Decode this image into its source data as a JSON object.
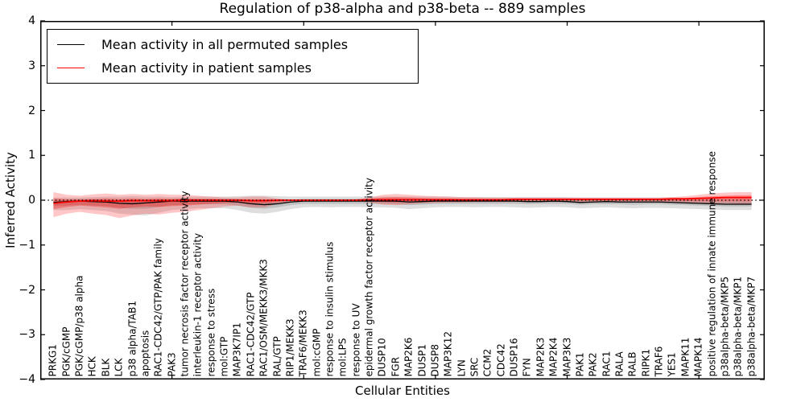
{
  "figure": {
    "title": "Regulation of p38-alpha and p38-beta -- 889 samples",
    "background": "#ffffff"
  },
  "legend": {
    "entries": [
      {
        "label": "Mean activity in all permuted samples",
        "color": "#000000"
      },
      {
        "label": "Mean activity in patient samples",
        "color": "#ff0000"
      }
    ]
  },
  "axes": {
    "ylabel": "Inferred Activity",
    "xlabel": "Cellular Entities",
    "y_ticks": [
      "4",
      "3",
      "2",
      "1",
      "0",
      "−1",
      "−2",
      "−3",
      "−4"
    ],
    "y_tick_values": [
      4,
      3,
      2,
      1,
      0,
      -1,
      -2,
      -3,
      -4
    ],
    "x_tick_values": [
      10,
      20,
      30,
      40,
      50
    ],
    "ylim": [
      -4,
      4
    ],
    "xlim": [
      0,
      55
    ]
  },
  "chart_data": {
    "type": "line",
    "title": "Regulation of p38-alpha and p38-beta -- 889 samples",
    "xlabel": "Cellular Entities",
    "ylabel": "Inferred Activity",
    "ylim": [
      -4,
      4
    ],
    "grid": false,
    "legend_position": "upper left",
    "zero_line": {
      "value": 0,
      "style": "dotted",
      "color": "#000000"
    },
    "categories": [
      "PRKG1",
      "PGK/cGMP",
      "PGK/cGMP/p38 alpha",
      "HCK",
      "BLK",
      "LCK",
      "p38 alpha/TAB1",
      "apoptosis",
      "RAC1-CDC42/GTP/PAK family",
      "PAK3",
      "tumor necrosis factor receptor activity",
      "interleukin-1 receptor activity",
      "response to stress",
      "mol:GTP",
      "MAP3K7IP1",
      "RAC1-CDC42/GTP",
      "RAC1/OSM/MEKK3/MKK3",
      "RAL/GTP",
      "RIP1/MEKK3",
      "TRAF6/MEKK3",
      "mol:cGMP",
      "response to insulin stimulus",
      "mol:LPS",
      "response to UV",
      "epidermal growth factor receptor activity",
      "DUSP10",
      "FGR",
      "MAP2K6",
      "DUSP1",
      "DUSP8",
      "MAP3K12",
      "LYN",
      "SRC",
      "CCM2",
      "CDC42",
      "DUSP16",
      "FYN",
      "MAP2K3",
      "MAP2K4",
      "MAP3K3",
      "PAK1",
      "PAK2",
      "RAC1",
      "RALA",
      "RALB",
      "RIPK1",
      "TRAF6",
      "YES1",
      "MAPK11",
      "MAPK14",
      "positive regulation of innate immune response",
      "p38alpha-beta/MKP5",
      "p38alpha-beta/MKP1",
      "p38alpha-beta/MKP7"
    ],
    "series": [
      {
        "name": "Mean activity in all permuted samples",
        "color": "#000000",
        "width": 1.3,
        "values": [
          -0.05,
          -0.03,
          -0.02,
          -0.03,
          -0.04,
          -0.07,
          -0.08,
          -0.06,
          -0.04,
          -0.02,
          -0.02,
          -0.02,
          -0.02,
          -0.02,
          -0.04,
          -0.08,
          -0.1,
          -0.08,
          -0.04,
          -0.02,
          -0.02,
          -0.02,
          -0.02,
          -0.02,
          -0.02,
          -0.02,
          -0.02,
          -0.04,
          -0.03,
          -0.02,
          -0.02,
          -0.02,
          -0.02,
          -0.02,
          -0.02,
          -0.02,
          -0.03,
          -0.03,
          -0.02,
          -0.03,
          -0.05,
          -0.04,
          -0.03,
          -0.04,
          -0.04,
          -0.04,
          -0.04,
          -0.05,
          -0.06,
          -0.07,
          -0.08,
          -0.09,
          -0.09,
          -0.09
        ]
      },
      {
        "name": "Mean activity in patient samples",
        "color": "#ff0000",
        "width": 1.8,
        "values": [
          -0.07,
          -0.04,
          -0.02,
          -0.01,
          -0.02,
          -0.02,
          -0.01,
          -0.01,
          -0.01,
          -0.01,
          0.0,
          0.0,
          0.0,
          0.0,
          0.0,
          -0.01,
          -0.01,
          0.0,
          0.0,
          0.0,
          0.0,
          0.0,
          0.0,
          0.0,
          0.01,
          0.01,
          0.01,
          0.01,
          0.01,
          0.01,
          0.01,
          0.01,
          0.01,
          0.01,
          0.01,
          0.02,
          0.02,
          0.02,
          0.02,
          0.02,
          0.02,
          0.02,
          0.02,
          0.02,
          0.02,
          0.02,
          0.02,
          0.03,
          0.03,
          0.04,
          0.05,
          0.06,
          0.06,
          0.06
        ]
      }
    ],
    "bands": [
      {
        "name": "permuted-range-outer",
        "color": "#000000",
        "opacity": 0.13,
        "upper": [
          0.06,
          0.06,
          0.06,
          0.07,
          0.08,
          0.08,
          0.09,
          0.08,
          0.08,
          0.07,
          0.08,
          0.08,
          0.08,
          0.08,
          0.09,
          0.1,
          0.1,
          0.09,
          0.08,
          0.08,
          0.08,
          0.08,
          0.08,
          0.08,
          0.08,
          0.08,
          0.08,
          0.08,
          0.08,
          0.08,
          0.08,
          0.07,
          0.07,
          0.07,
          0.07,
          0.07,
          0.07,
          0.07,
          0.07,
          0.07,
          0.06,
          0.06,
          0.06,
          0.06,
          0.06,
          0.06,
          0.06,
          0.06,
          0.05,
          0.05,
          0.05,
          0.05,
          0.05,
          0.05
        ],
        "lower": [
          -0.22,
          -0.22,
          -0.2,
          -0.22,
          -0.24,
          -0.3,
          -0.32,
          -0.34,
          -0.28,
          -0.22,
          -0.2,
          -0.18,
          -0.18,
          -0.18,
          -0.22,
          -0.28,
          -0.3,
          -0.26,
          -0.2,
          -0.16,
          -0.15,
          -0.16,
          -0.15,
          -0.15,
          -0.16,
          -0.16,
          -0.17,
          -0.2,
          -0.18,
          -0.16,
          -0.15,
          -0.15,
          -0.16,
          -0.15,
          -0.15,
          -0.16,
          -0.17,
          -0.16,
          -0.15,
          -0.16,
          -0.18,
          -0.17,
          -0.16,
          -0.17,
          -0.18,
          -0.17,
          -0.17,
          -0.18,
          -0.19,
          -0.2,
          -0.21,
          -0.22,
          -0.22,
          -0.22
        ]
      },
      {
        "name": "permuted-range-inner",
        "color": "#000000",
        "opacity": 0.14,
        "upper": [
          0.0,
          0.01,
          0.02,
          0.02,
          0.01,
          0.0,
          0.0,
          0.0,
          0.01,
          0.02,
          0.03,
          0.03,
          0.03,
          0.03,
          0.02,
          0.0,
          -0.01,
          0.0,
          0.01,
          0.03,
          0.03,
          0.03,
          0.03,
          0.03,
          0.03,
          0.03,
          0.03,
          0.01,
          0.02,
          0.03,
          0.03,
          0.02,
          0.02,
          0.02,
          0.02,
          0.02,
          0.02,
          0.02,
          0.02,
          0.02,
          0.01,
          0.01,
          0.01,
          0.01,
          0.01,
          0.01,
          0.01,
          0.01,
          0.0,
          -0.01,
          -0.01,
          -0.02,
          -0.02,
          -0.02
        ],
        "lower": [
          -0.13,
          -0.12,
          -0.1,
          -0.12,
          -0.13,
          -0.17,
          -0.19,
          -0.19,
          -0.15,
          -0.11,
          -0.1,
          -0.09,
          -0.09,
          -0.09,
          -0.12,
          -0.17,
          -0.19,
          -0.16,
          -0.11,
          -0.08,
          -0.08,
          -0.08,
          -0.08,
          -0.08,
          -0.08,
          -0.08,
          -0.09,
          -0.11,
          -0.1,
          -0.08,
          -0.08,
          -0.08,
          -0.08,
          -0.08,
          -0.08,
          -0.08,
          -0.09,
          -0.08,
          -0.08,
          -0.08,
          -0.1,
          -0.09,
          -0.09,
          -0.09,
          -0.1,
          -0.09,
          -0.09,
          -0.1,
          -0.11,
          -0.12,
          -0.13,
          -0.14,
          -0.14,
          -0.14
        ]
      },
      {
        "name": "patient-range-outer",
        "color": "#ff0000",
        "opacity": 0.22,
        "upper": [
          0.18,
          0.12,
          0.1,
          0.13,
          0.15,
          0.12,
          0.14,
          0.12,
          0.14,
          0.12,
          0.12,
          0.1,
          0.08,
          0.06,
          0.06,
          0.08,
          0.08,
          0.04,
          0.01,
          0.01,
          0.01,
          0.01,
          0.01,
          0.02,
          0.06,
          0.12,
          0.14,
          0.12,
          0.1,
          0.09,
          0.08,
          0.07,
          0.07,
          0.06,
          0.06,
          0.06,
          0.06,
          0.06,
          0.06,
          0.06,
          0.06,
          0.06,
          0.06,
          0.06,
          0.06,
          0.06,
          0.06,
          0.07,
          0.09,
          0.12,
          0.15,
          0.17,
          0.18,
          0.18
        ],
        "lower": [
          -0.38,
          -0.3,
          -0.26,
          -0.3,
          -0.33,
          -0.4,
          -0.34,
          -0.3,
          -0.32,
          -0.28,
          -0.26,
          -0.22,
          -0.18,
          -0.14,
          -0.12,
          -0.16,
          -0.16,
          -0.08,
          -0.02,
          -0.01,
          -0.01,
          -0.01,
          -0.01,
          -0.02,
          -0.05,
          -0.1,
          -0.11,
          -0.09,
          -0.07,
          -0.06,
          -0.05,
          -0.05,
          -0.04,
          -0.04,
          -0.04,
          -0.04,
          -0.04,
          -0.04,
          -0.04,
          -0.04,
          -0.04,
          -0.04,
          -0.04,
          -0.04,
          -0.04,
          -0.04,
          -0.04,
          -0.04,
          -0.05,
          -0.06,
          -0.07,
          -0.07,
          -0.08,
          -0.08
        ]
      },
      {
        "name": "patient-range-inner",
        "color": "#ff0000",
        "opacity": 0.3,
        "upper": [
          0.04,
          0.02,
          0.02,
          0.03,
          0.04,
          0.03,
          0.04,
          0.03,
          0.04,
          0.03,
          0.04,
          0.03,
          0.03,
          0.02,
          0.02,
          0.02,
          0.02,
          0.01,
          0.0,
          0.0,
          0.0,
          0.0,
          0.0,
          0.01,
          0.03,
          0.06,
          0.07,
          0.06,
          0.05,
          0.04,
          0.04,
          0.03,
          0.03,
          0.03,
          0.03,
          0.03,
          0.03,
          0.03,
          0.03,
          0.03,
          0.03,
          0.03,
          0.03,
          0.03,
          0.03,
          0.03,
          0.03,
          0.04,
          0.05,
          0.07,
          0.09,
          0.1,
          0.11,
          0.11
        ],
        "lower": [
          -0.2,
          -0.15,
          -0.12,
          -0.14,
          -0.16,
          -0.19,
          -0.16,
          -0.14,
          -0.15,
          -0.13,
          -0.12,
          -0.1,
          -0.08,
          -0.06,
          -0.05,
          -0.07,
          -0.07,
          -0.04,
          -0.01,
          0.0,
          0.0,
          0.0,
          0.0,
          -0.01,
          -0.02,
          -0.04,
          -0.05,
          -0.04,
          -0.03,
          -0.02,
          -0.02,
          -0.02,
          -0.01,
          -0.01,
          -0.01,
          -0.01,
          -0.01,
          -0.01,
          -0.01,
          -0.01,
          -0.01,
          -0.01,
          -0.01,
          -0.01,
          -0.01,
          -0.01,
          -0.01,
          -0.01,
          -0.02,
          -0.02,
          -0.02,
          -0.02,
          -0.02,
          -0.02
        ]
      }
    ]
  }
}
